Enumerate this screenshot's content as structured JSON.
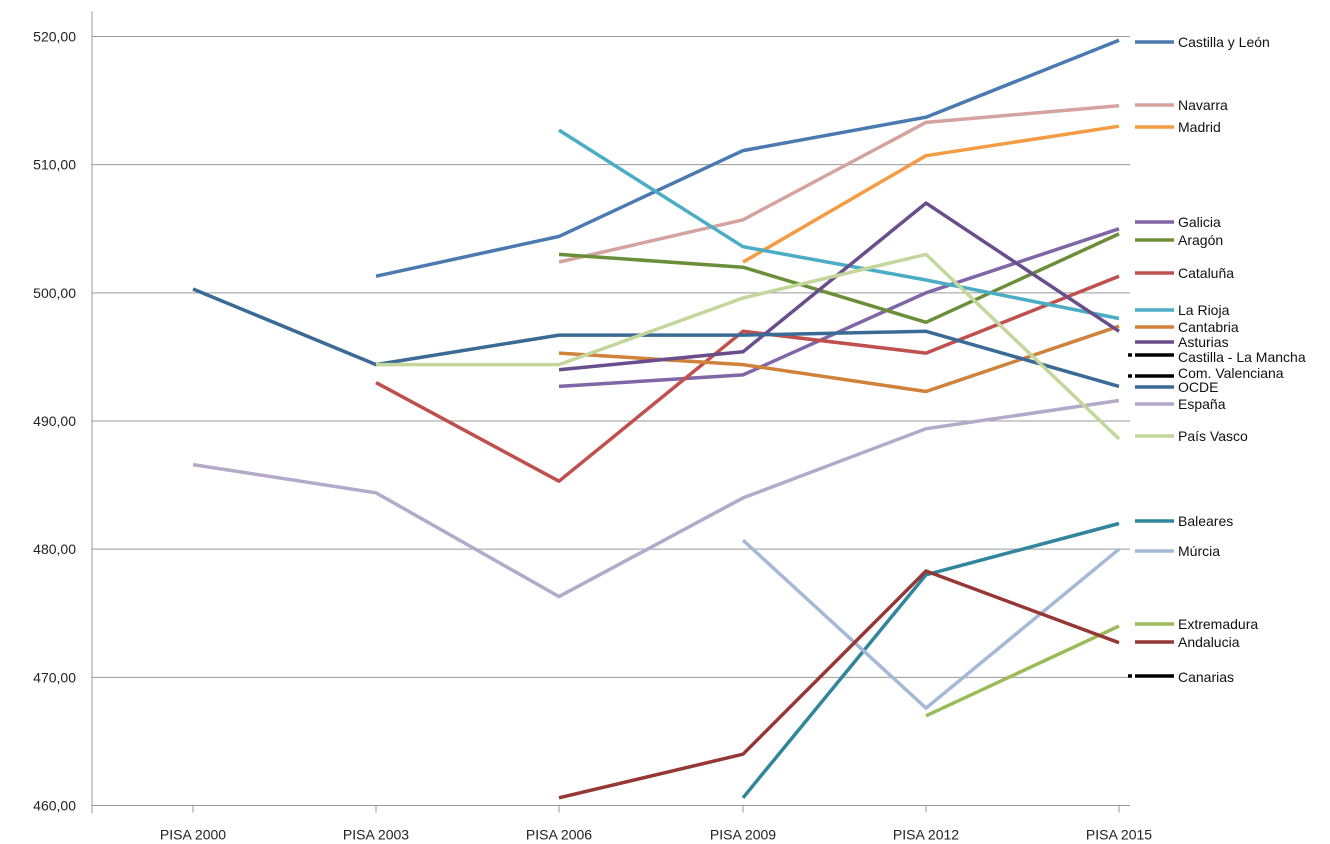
{
  "chart_data": {
    "type": "line",
    "categories": [
      "PISA 2000",
      "PISA 2003",
      "PISA 2006",
      "PISA 2009",
      "PISA 2012",
      "PISA 2015"
    ],
    "ylim": [
      460,
      520
    ],
    "yticks": [
      "460,00",
      "470,00",
      "480,00",
      "490,00",
      "500,00",
      "510,00",
      "520,00"
    ],
    "grid": true,
    "legend_placement": "right",
    "series": [
      {
        "name": "Castilla y León",
        "color": "#4a7ab0",
        "values": [
          null,
          501.3,
          504.4,
          511.1,
          513.7,
          519.7
        ]
      },
      {
        "name": "Navarra",
        "color": "#d4a39f",
        "values": [
          null,
          null,
          502.4,
          505.7,
          513.3,
          514.6
        ]
      },
      {
        "name": "Madrid",
        "color": "#f39c44",
        "values": [
          null,
          null,
          null,
          502.4,
          510.7,
          513.0
        ]
      },
      {
        "name": "Galicia",
        "color": "#8066a6",
        "values": [
          null,
          null,
          492.7,
          493.6,
          500.0,
          505.0
        ]
      },
      {
        "name": "Aragón",
        "color": "#6b8e3a",
        "values": [
          null,
          null,
          503.0,
          502.0,
          497.7,
          504.6
        ]
      },
      {
        "name": "Cataluña",
        "color": "#c0504d",
        "values": [
          null,
          493.0,
          485.3,
          497.0,
          495.3,
          501.3
        ]
      },
      {
        "name": "La Rioja",
        "color": "#4bacc6",
        "values": [
          null,
          null,
          512.7,
          503.6,
          501.0,
          498.0
        ]
      },
      {
        "name": "Cantabria",
        "color": "#d0813a",
        "values": [
          null,
          null,
          495.3,
          494.4,
          492.3,
          497.4
        ]
      },
      {
        "name": "Asturias",
        "color": "#6a4e8c",
        "values": [
          null,
          null,
          494.0,
          495.4,
          507.0,
          497.0
        ]
      },
      {
        "name": "Castilla - La Mancha",
        "color": "#000000",
        "values": [
          null,
          null,
          null,
          null,
          null,
          495.0
        ]
      },
      {
        "name": "Com. Valenciana",
        "color": "#000000",
        "values": [
          null,
          null,
          null,
          null,
          null,
          493.3
        ]
      },
      {
        "name": "OCDE",
        "color": "#3b6a96",
        "values": [
          500.3,
          494.4,
          496.7,
          496.7,
          497.0,
          492.7
        ]
      },
      {
        "name": "España",
        "color": "#b3a9c9",
        "values": [
          486.6,
          484.4,
          476.3,
          484.0,
          489.4,
          491.6
        ]
      },
      {
        "name": "País Vasco",
        "color": "#c3d69b",
        "values": [
          null,
          494.4,
          494.4,
          499.6,
          503.0,
          488.6
        ]
      },
      {
        "name": "Baleares",
        "color": "#31859c",
        "values": [
          null,
          null,
          null,
          460.6,
          478.0,
          482.0
        ]
      },
      {
        "name": "Múrcia",
        "color": "#a5b9d6",
        "values": [
          null,
          null,
          null,
          480.7,
          467.6,
          480.0
        ]
      },
      {
        "name": "Extremadura",
        "color": "#9bbb59",
        "values": [
          null,
          null,
          null,
          null,
          467.0,
          474.0
        ]
      },
      {
        "name": "Andalucia",
        "color": "#953735",
        "values": [
          null,
          null,
          460.6,
          464.0,
          478.3,
          472.7
        ]
      },
      {
        "name": "Canarias",
        "color": "#000000",
        "values": [
          null,
          null,
          null,
          null,
          null,
          470.0
        ]
      }
    ]
  }
}
